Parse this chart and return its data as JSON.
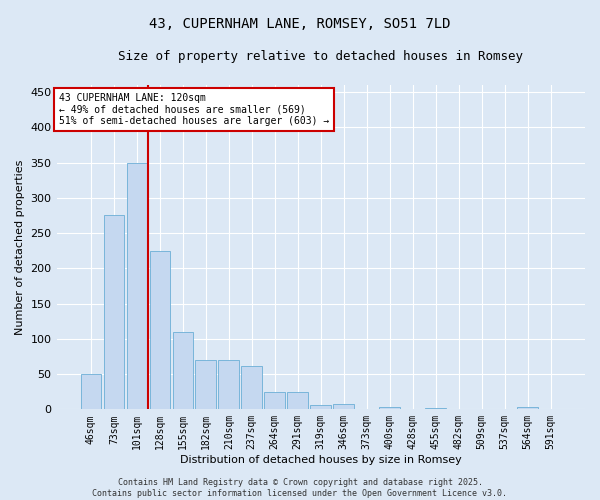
{
  "title": "43, CUPERNHAM LANE, ROMSEY, SO51 7LD",
  "subtitle": "Size of property relative to detached houses in Romsey",
  "xlabel": "Distribution of detached houses by size in Romsey",
  "ylabel": "Number of detached properties",
  "bar_labels": [
    "46sqm",
    "73sqm",
    "101sqm",
    "128sqm",
    "155sqm",
    "182sqm",
    "210sqm",
    "237sqm",
    "264sqm",
    "291sqm",
    "319sqm",
    "346sqm",
    "373sqm",
    "400sqm",
    "428sqm",
    "455sqm",
    "482sqm",
    "509sqm",
    "537sqm",
    "564sqm",
    "591sqm"
  ],
  "bar_values": [
    50,
    275,
    350,
    225,
    110,
    70,
    70,
    62,
    25,
    25,
    6,
    8,
    0,
    3,
    0,
    2,
    0,
    0,
    0,
    3,
    0
  ],
  "bar_color": "#c5d8f0",
  "bar_edge_color": "#6baed6",
  "highlight_index": 3,
  "highlight_color": "#cc0000",
  "ylim": [
    0,
    460
  ],
  "yticks": [
    0,
    50,
    100,
    150,
    200,
    250,
    300,
    350,
    400,
    450
  ],
  "annotation_text": "43 CUPERNHAM LANE: 120sqm\n← 49% of detached houses are smaller (569)\n51% of semi-detached houses are larger (603) →",
  "annotation_box_facecolor": "#ffffff",
  "annotation_box_edgecolor": "#cc0000",
  "footer_line1": "Contains HM Land Registry data © Crown copyright and database right 2025.",
  "footer_line2": "Contains public sector information licensed under the Open Government Licence v3.0.",
  "fig_facecolor": "#dce8f5",
  "plot_facecolor": "#dce8f5",
  "grid_color": "#ffffff",
  "title_fontsize": 10,
  "subtitle_fontsize": 9,
  "tick_fontsize": 7,
  "ylabel_fontsize": 8,
  "xlabel_fontsize": 8,
  "annotation_fontsize": 7,
  "footer_fontsize": 6
}
